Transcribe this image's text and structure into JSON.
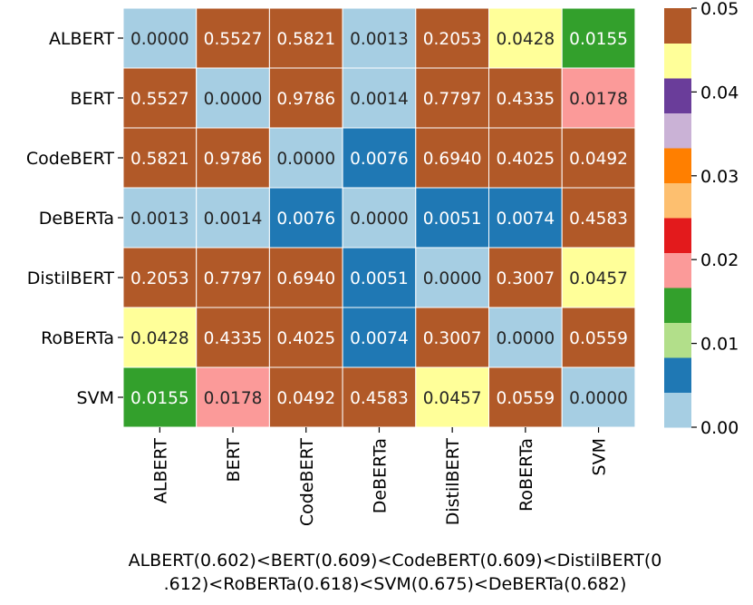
{
  "chart_data": {
    "type": "heatmap",
    "categories": [
      "ALBERT",
      "BERT",
      "CodeBERT",
      "DeBERTa",
      "DistilBERT",
      "RoBERTa",
      "SVM"
    ],
    "matrix": [
      [
        0.0,
        0.5527,
        0.5821,
        0.0013,
        0.2053,
        0.0428,
        0.0155
      ],
      [
        0.5527,
        0.0,
        0.9786,
        0.0014,
        0.7797,
        0.4335,
        0.0178
      ],
      [
        0.5821,
        0.9786,
        0.0,
        0.0076,
        0.694,
        0.4025,
        0.0492
      ],
      [
        0.0013,
        0.0014,
        0.0076,
        0.0,
        0.0051,
        0.0074,
        0.4583
      ],
      [
        0.2053,
        0.7797,
        0.694,
        0.0051,
        0.0,
        0.3007,
        0.0457
      ],
      [
        0.0428,
        0.4335,
        0.4025,
        0.0074,
        0.3007,
        0.0,
        0.0559
      ],
      [
        0.0155,
        0.0178,
        0.0492,
        0.4583,
        0.0457,
        0.0559,
        0.0
      ]
    ],
    "cell_labels": [
      [
        "0.0000",
        "0.5527",
        "0.5821",
        "0.0013",
        "0.2053",
        "0.0428",
        "0.0155"
      ],
      [
        "0.5527",
        "0.0000",
        "0.9786",
        "0.0014",
        "0.7797",
        "0.4335",
        "0.0178"
      ],
      [
        "0.5821",
        "0.9786",
        "0.0000",
        "0.0076",
        "0.6940",
        "0.4025",
        "0.0492"
      ],
      [
        "0.0013",
        "0.0014",
        "0.0076",
        "0.0000",
        "0.0051",
        "0.0074",
        "0.4583"
      ],
      [
        "0.2053",
        "0.7797",
        "0.6940",
        "0.0051",
        "0.0000",
        "0.3007",
        "0.0457"
      ],
      [
        "0.0428",
        "0.4335",
        "0.4025",
        "0.0074",
        "0.3007",
        "0.0000",
        "0.0559"
      ],
      [
        "0.0155",
        "0.0178",
        "0.0492",
        "0.4583",
        "0.0457",
        "0.0559",
        "0.0000"
      ]
    ],
    "xlabel_lines": [
      "ALBERT(0.602)<BERT(0.609)<CodeBERT(0.609)<DistilBERT(0",
      ".612)<RoBERTa(0.618)<SVM(0.675)<DeBERTa(0.682)"
    ],
    "colorbar": {
      "range": [
        0,
        0.05
      ],
      "ticks": [
        0.0,
        0.01,
        0.02,
        0.03,
        0.04,
        0.05
      ],
      "tick_labels": [
        "0.00",
        "0.01",
        "0.02",
        "0.03",
        "0.04",
        "0.05"
      ],
      "colors": [
        "#a6cee3",
        "#1f78b4",
        "#b2df8a",
        "#33a02c",
        "#fb9a99",
        "#e31a1c",
        "#fdbf6f",
        "#ff7f00",
        "#cab2d6",
        "#6a3d9a",
        "#ffff99",
        "#b15928"
      ]
    }
  }
}
